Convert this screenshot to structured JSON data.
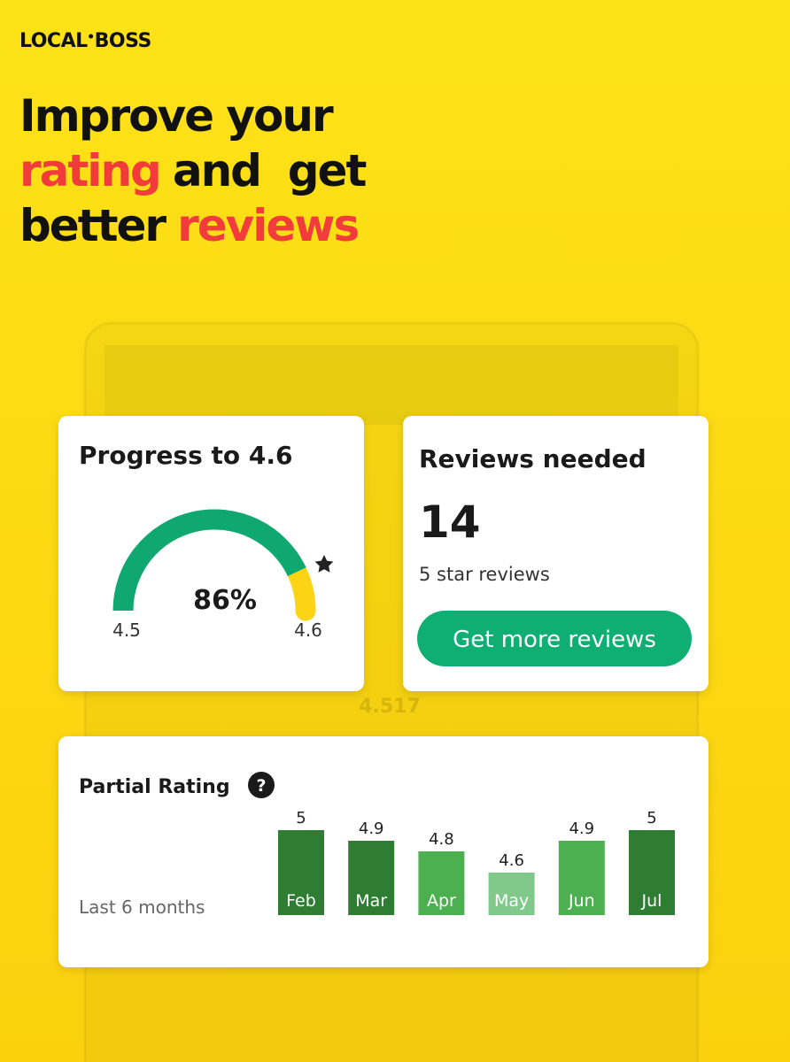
{
  "brand": {
    "first": "LOCAL",
    "second": "BOSS"
  },
  "headline": {
    "line1": "Improve your",
    "line2_highlight": "rating",
    "line2_rest": "and  get",
    "line3_rest": "better",
    "line3_highlight": "reviews"
  },
  "background_rating": "4.517",
  "progress_card": {
    "title": "Progress to 4.6",
    "value": 86,
    "value_label": "86%",
    "start_label": "4.5",
    "end_label": "4.6",
    "color": "#0fa870",
    "remainder_color": "#fcd416"
  },
  "reviews_card": {
    "title": "Reviews needed",
    "count": 14,
    "subtitle": "5 star reviews",
    "button": "Get more reviews"
  },
  "chart_data": {
    "type": "bar",
    "title": "Partial Rating",
    "help": "?",
    "subtitle": "Last 6 months",
    "categories": [
      "Feb",
      "Mar",
      "Apr",
      "May",
      "Jun",
      "Jul"
    ],
    "values": [
      5,
      4.9,
      4.8,
      4.6,
      4.9,
      5
    ],
    "colors": [
      "#2e7d32",
      "#2e7d32",
      "#4caf50",
      "#80c98b",
      "#4caf50",
      "#2e7d32"
    ],
    "ylim": [
      4.2,
      5
    ]
  }
}
